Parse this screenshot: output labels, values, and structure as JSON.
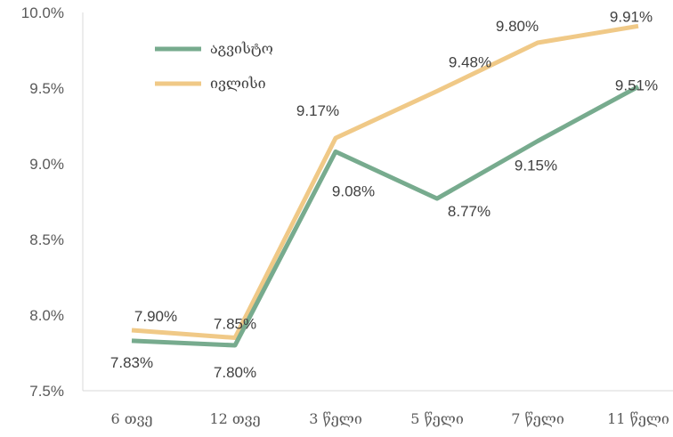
{
  "chart_data": {
    "type": "line",
    "categories": [
      "6 თვე",
      "12 თვე",
      "3 წელი",
      "5 წელი",
      "7 წელი",
      "11 წელი"
    ],
    "series": [
      {
        "name": "აგვისტო",
        "values": [
          7.83,
          7.8,
          9.08,
          8.77,
          9.15,
          9.51
        ],
        "labels": [
          "7.83%",
          "7.80%",
          "9.08%",
          "8.77%",
          "9.15%",
          "9.51%"
        ],
        "color": "#77ab8e"
      },
      {
        "name": "ივლისი",
        "values": [
          7.9,
          7.85,
          9.17,
          9.48,
          9.8,
          9.91
        ],
        "labels": [
          "7.90%",
          "7.85%",
          "9.17%",
          "9.48%",
          "9.80%",
          "9.91%"
        ],
        "color": "#f0c987"
      }
    ],
    "y_ticks": [
      "7.5%",
      "8.0%",
      "8.5%",
      "9.0%",
      "9.5%",
      "10.0%"
    ],
    "ylim": [
      7.5,
      10.0
    ],
    "grid": false,
    "legend_position": "top-left",
    "title": "",
    "xlabel": "",
    "ylabel": ""
  }
}
